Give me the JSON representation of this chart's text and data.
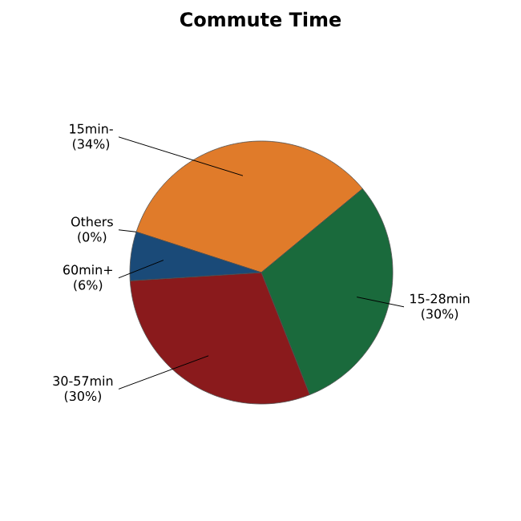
{
  "chart_data": {
    "type": "pie",
    "title": "Commute Time",
    "categories": [
      "15min-",
      "15-28min",
      "30-57min",
      "60min+",
      "Others"
    ],
    "values": [
      34,
      30,
      30,
      6,
      0
    ],
    "value_labels": [
      "(34%)",
      "(30%)",
      "(30%)",
      "(6%)",
      "(0%)"
    ],
    "colors": [
      "#e07b2a",
      "#1a6a3c",
      "#8a1a1c",
      "#1a4a78",
      "#9a9a9a"
    ]
  }
}
